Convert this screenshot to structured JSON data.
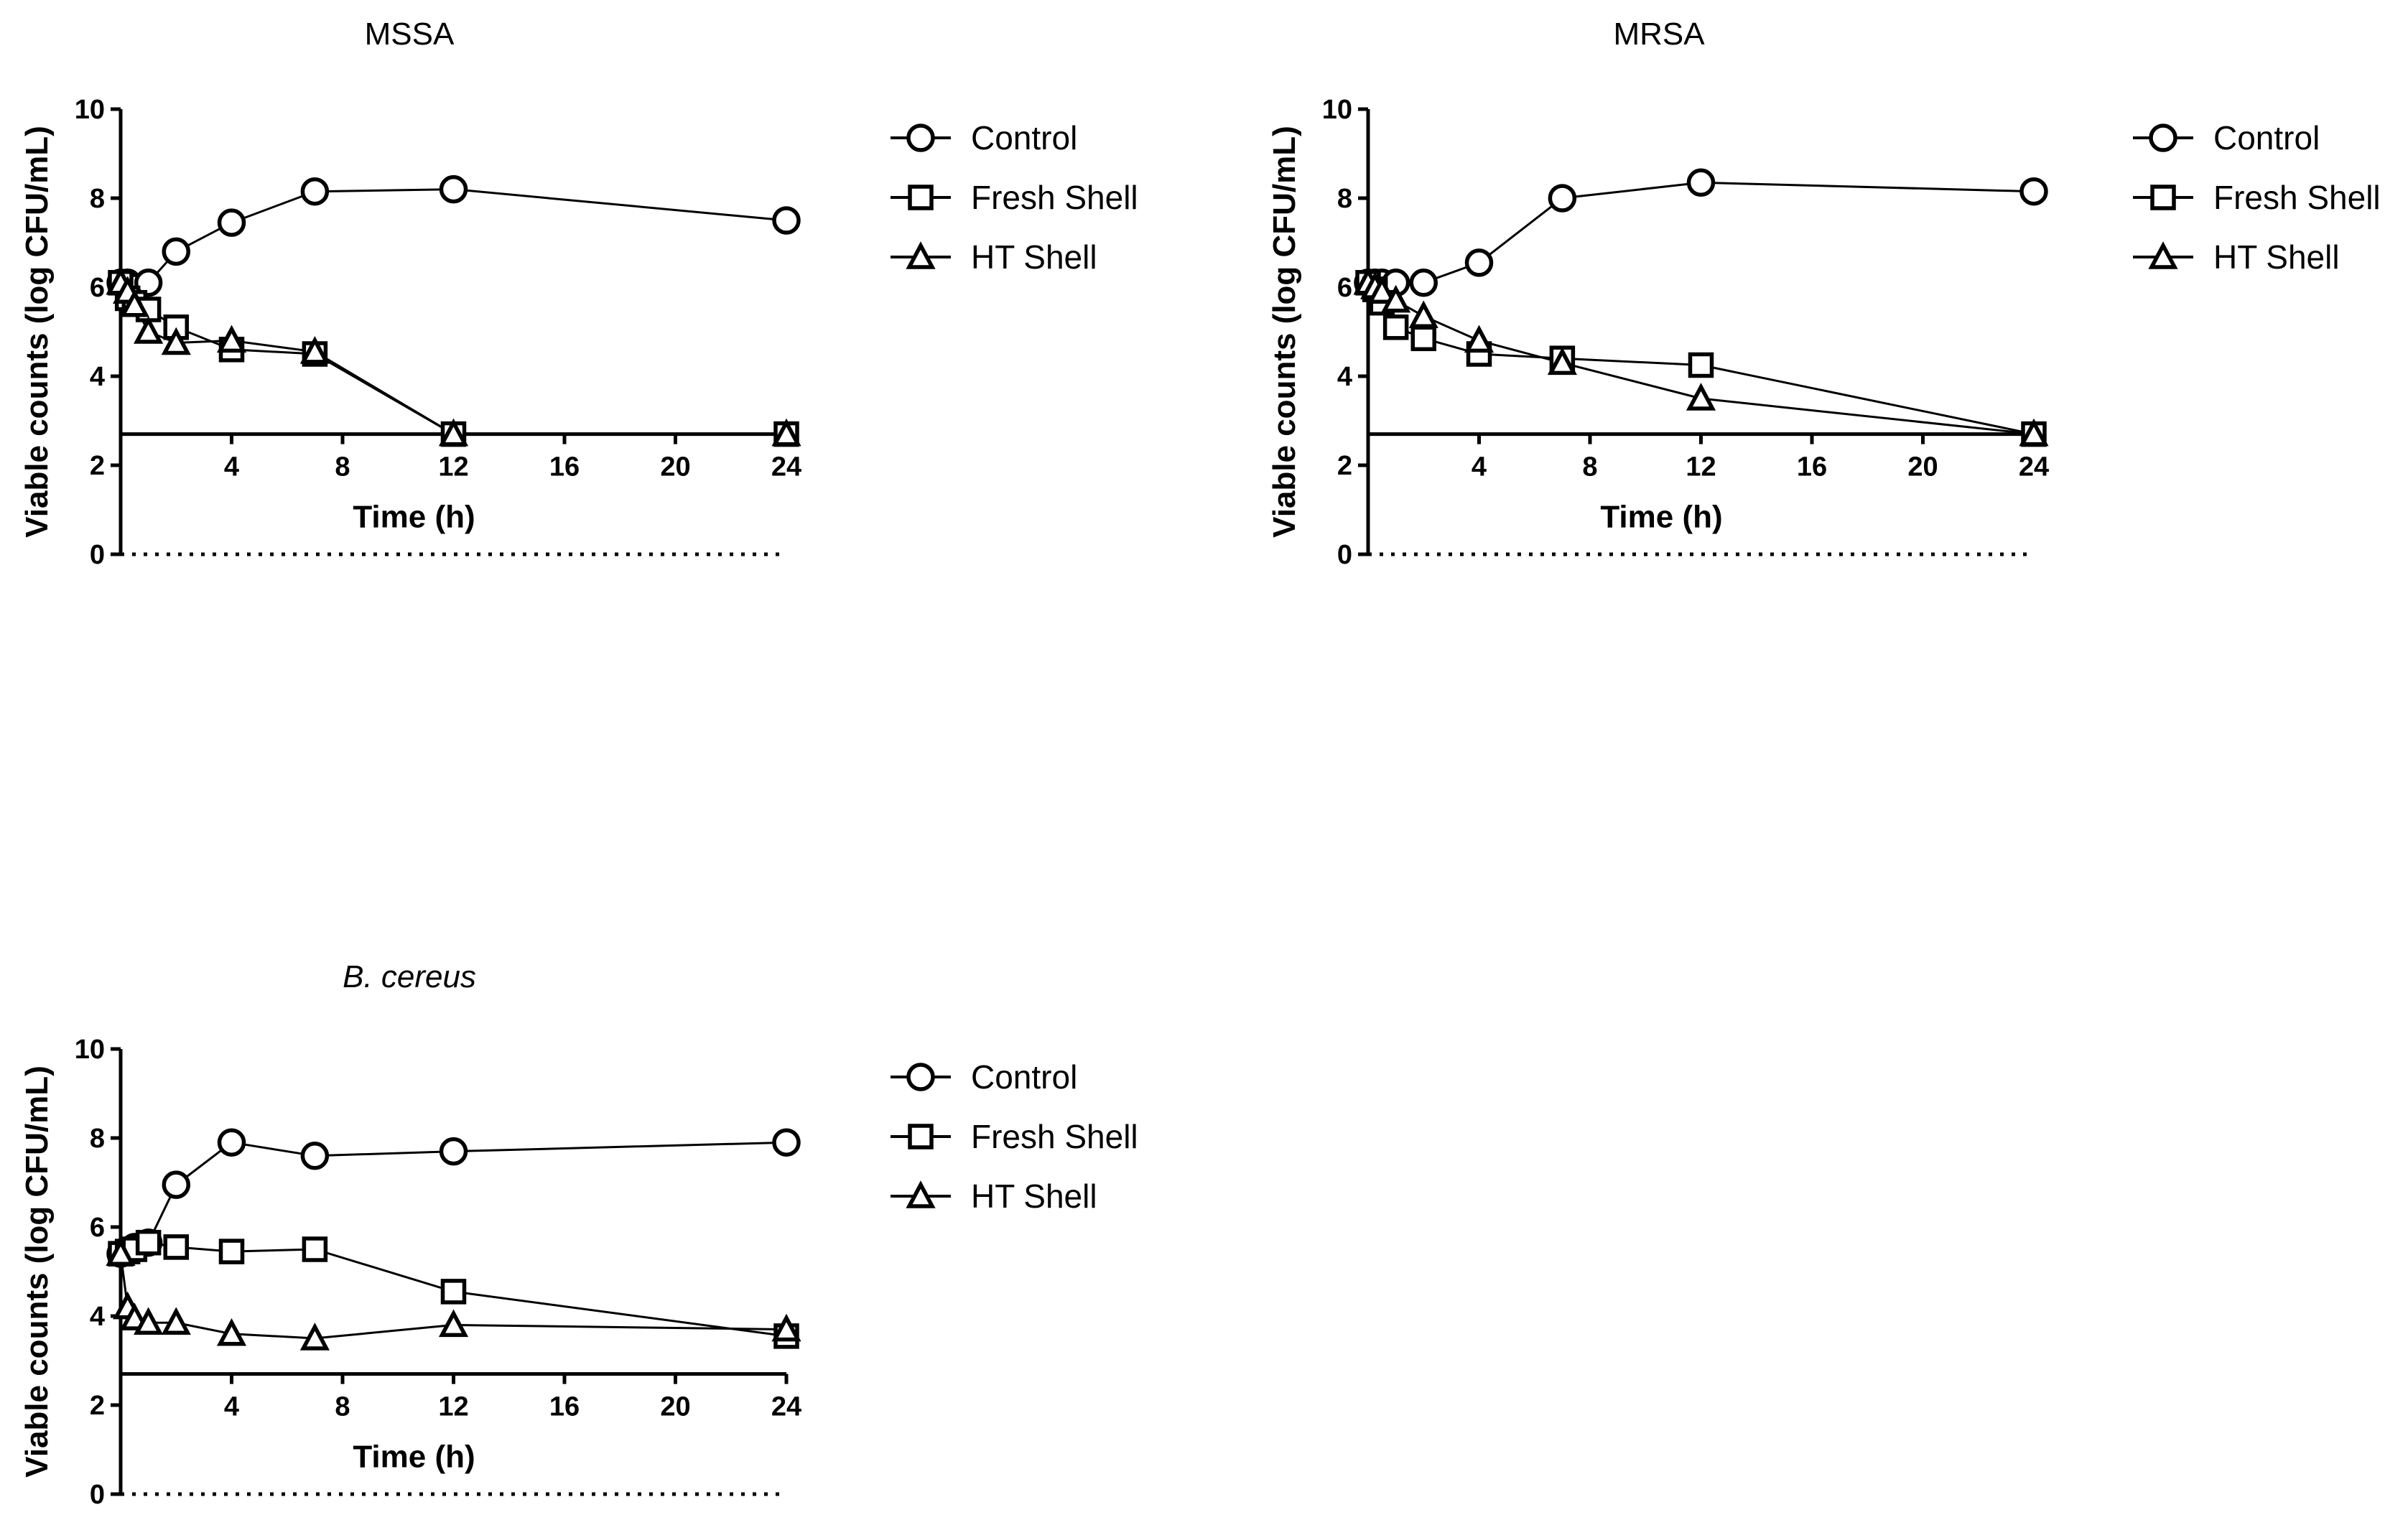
{
  "chart_data": [
    {
      "type": "line",
      "title": "MSSA",
      "title_italic": false,
      "xlabel": "Time (h)",
      "ylabel": "Viable counts (log CFU/mL)",
      "xlim": [
        0,
        24
      ],
      "ylim": [
        0,
        10
      ],
      "xticks": [
        4,
        8,
        12,
        16,
        20,
        24
      ],
      "yticks": [
        0,
        2,
        4,
        6,
        8,
        10
      ],
      "detection_limit": 2.7,
      "grid": false,
      "legend_position": "right",
      "series": [
        {
          "name": "Control",
          "marker": "circle",
          "x": [
            0,
            0.25,
            0.5,
            1,
            2,
            4,
            7,
            12,
            24
          ],
          "y": [
            6.1,
            6.1,
            6.0,
            6.1,
            6.8,
            7.45,
            8.15,
            8.2,
            7.5
          ]
        },
        {
          "name": "Fresh Shell",
          "marker": "square",
          "x": [
            0,
            0.25,
            0.5,
            1,
            2,
            4,
            7,
            12,
            24
          ],
          "y": [
            6.1,
            5.75,
            5.65,
            5.5,
            5.1,
            4.6,
            4.5,
            2.7,
            2.7
          ]
        },
        {
          "name": "HT Shell",
          "marker": "triangle",
          "x": [
            0,
            0.25,
            0.5,
            1,
            2,
            4,
            7,
            12,
            24
          ],
          "y": [
            6.1,
            5.9,
            5.6,
            5.0,
            4.75,
            4.8,
            4.55,
            2.7,
            2.7
          ]
        }
      ]
    },
    {
      "type": "line",
      "title": "MRSA",
      "title_italic": false,
      "xlabel": "Time (h)",
      "ylabel": "Viable counts (log CFU/mL)",
      "xlim": [
        0,
        24
      ],
      "ylim": [
        0,
        10
      ],
      "xticks": [
        4,
        8,
        12,
        16,
        20,
        24
      ],
      "yticks": [
        0,
        2,
        4,
        6,
        8,
        10
      ],
      "detection_limit": 2.7,
      "grid": false,
      "legend_position": "right",
      "series": [
        {
          "name": "Control",
          "marker": "circle",
          "x": [
            0,
            0.25,
            0.5,
            1,
            2,
            4,
            7,
            12,
            24
          ],
          "y": [
            6.1,
            6.1,
            6.1,
            6.1,
            6.1,
            6.55,
            8.0,
            8.35,
            8.15
          ]
        },
        {
          "name": "Fresh Shell",
          "marker": "square",
          "x": [
            0,
            0.25,
            0.5,
            1,
            2,
            4,
            7,
            12,
            24
          ],
          "y": [
            6.1,
            5.95,
            5.65,
            5.1,
            4.85,
            4.5,
            4.4,
            4.25,
            2.7
          ]
        },
        {
          "name": "HT Shell",
          "marker": "triangle",
          "x": [
            0,
            0.25,
            0.5,
            1,
            2,
            4,
            7,
            12,
            24
          ],
          "y": [
            6.1,
            6.0,
            5.9,
            5.7,
            5.35,
            4.8,
            4.3,
            3.5,
            2.7
          ]
        }
      ]
    },
    {
      "type": "line",
      "title": "B. cereus",
      "title_italic": true,
      "xlabel": "Time (h)",
      "ylabel": "Viable counts (log CFU/mL)",
      "xlim": [
        0,
        24
      ],
      "ylim": [
        0,
        10
      ],
      "xticks": [
        4,
        8,
        12,
        16,
        20,
        24
      ],
      "yticks": [
        0,
        2,
        4,
        6,
        8,
        10
      ],
      "detection_limit": 2.7,
      "grid": false,
      "legend_position": "right",
      "series": [
        {
          "name": "Control",
          "marker": "circle",
          "x": [
            0,
            0.25,
            0.5,
            1,
            2,
            4,
            7,
            12,
            24
          ],
          "y": [
            5.4,
            5.45,
            5.55,
            5.65,
            6.95,
            7.9,
            7.6,
            7.7,
            7.9
          ]
        },
        {
          "name": "Fresh Shell",
          "marker": "square",
          "x": [
            0,
            0.25,
            0.5,
            1,
            2,
            4,
            7,
            12,
            24
          ],
          "y": [
            5.4,
            5.45,
            5.5,
            5.65,
            5.55,
            5.45,
            5.5,
            4.55,
            3.55
          ]
        },
        {
          "name": "HT Shell",
          "marker": "triangle",
          "x": [
            0,
            0.25,
            0.5,
            1,
            2,
            4,
            7,
            12,
            24
          ],
          "y": [
            5.4,
            4.2,
            3.95,
            3.85,
            3.85,
            3.6,
            3.5,
            3.8,
            3.7
          ]
        }
      ]
    }
  ]
}
